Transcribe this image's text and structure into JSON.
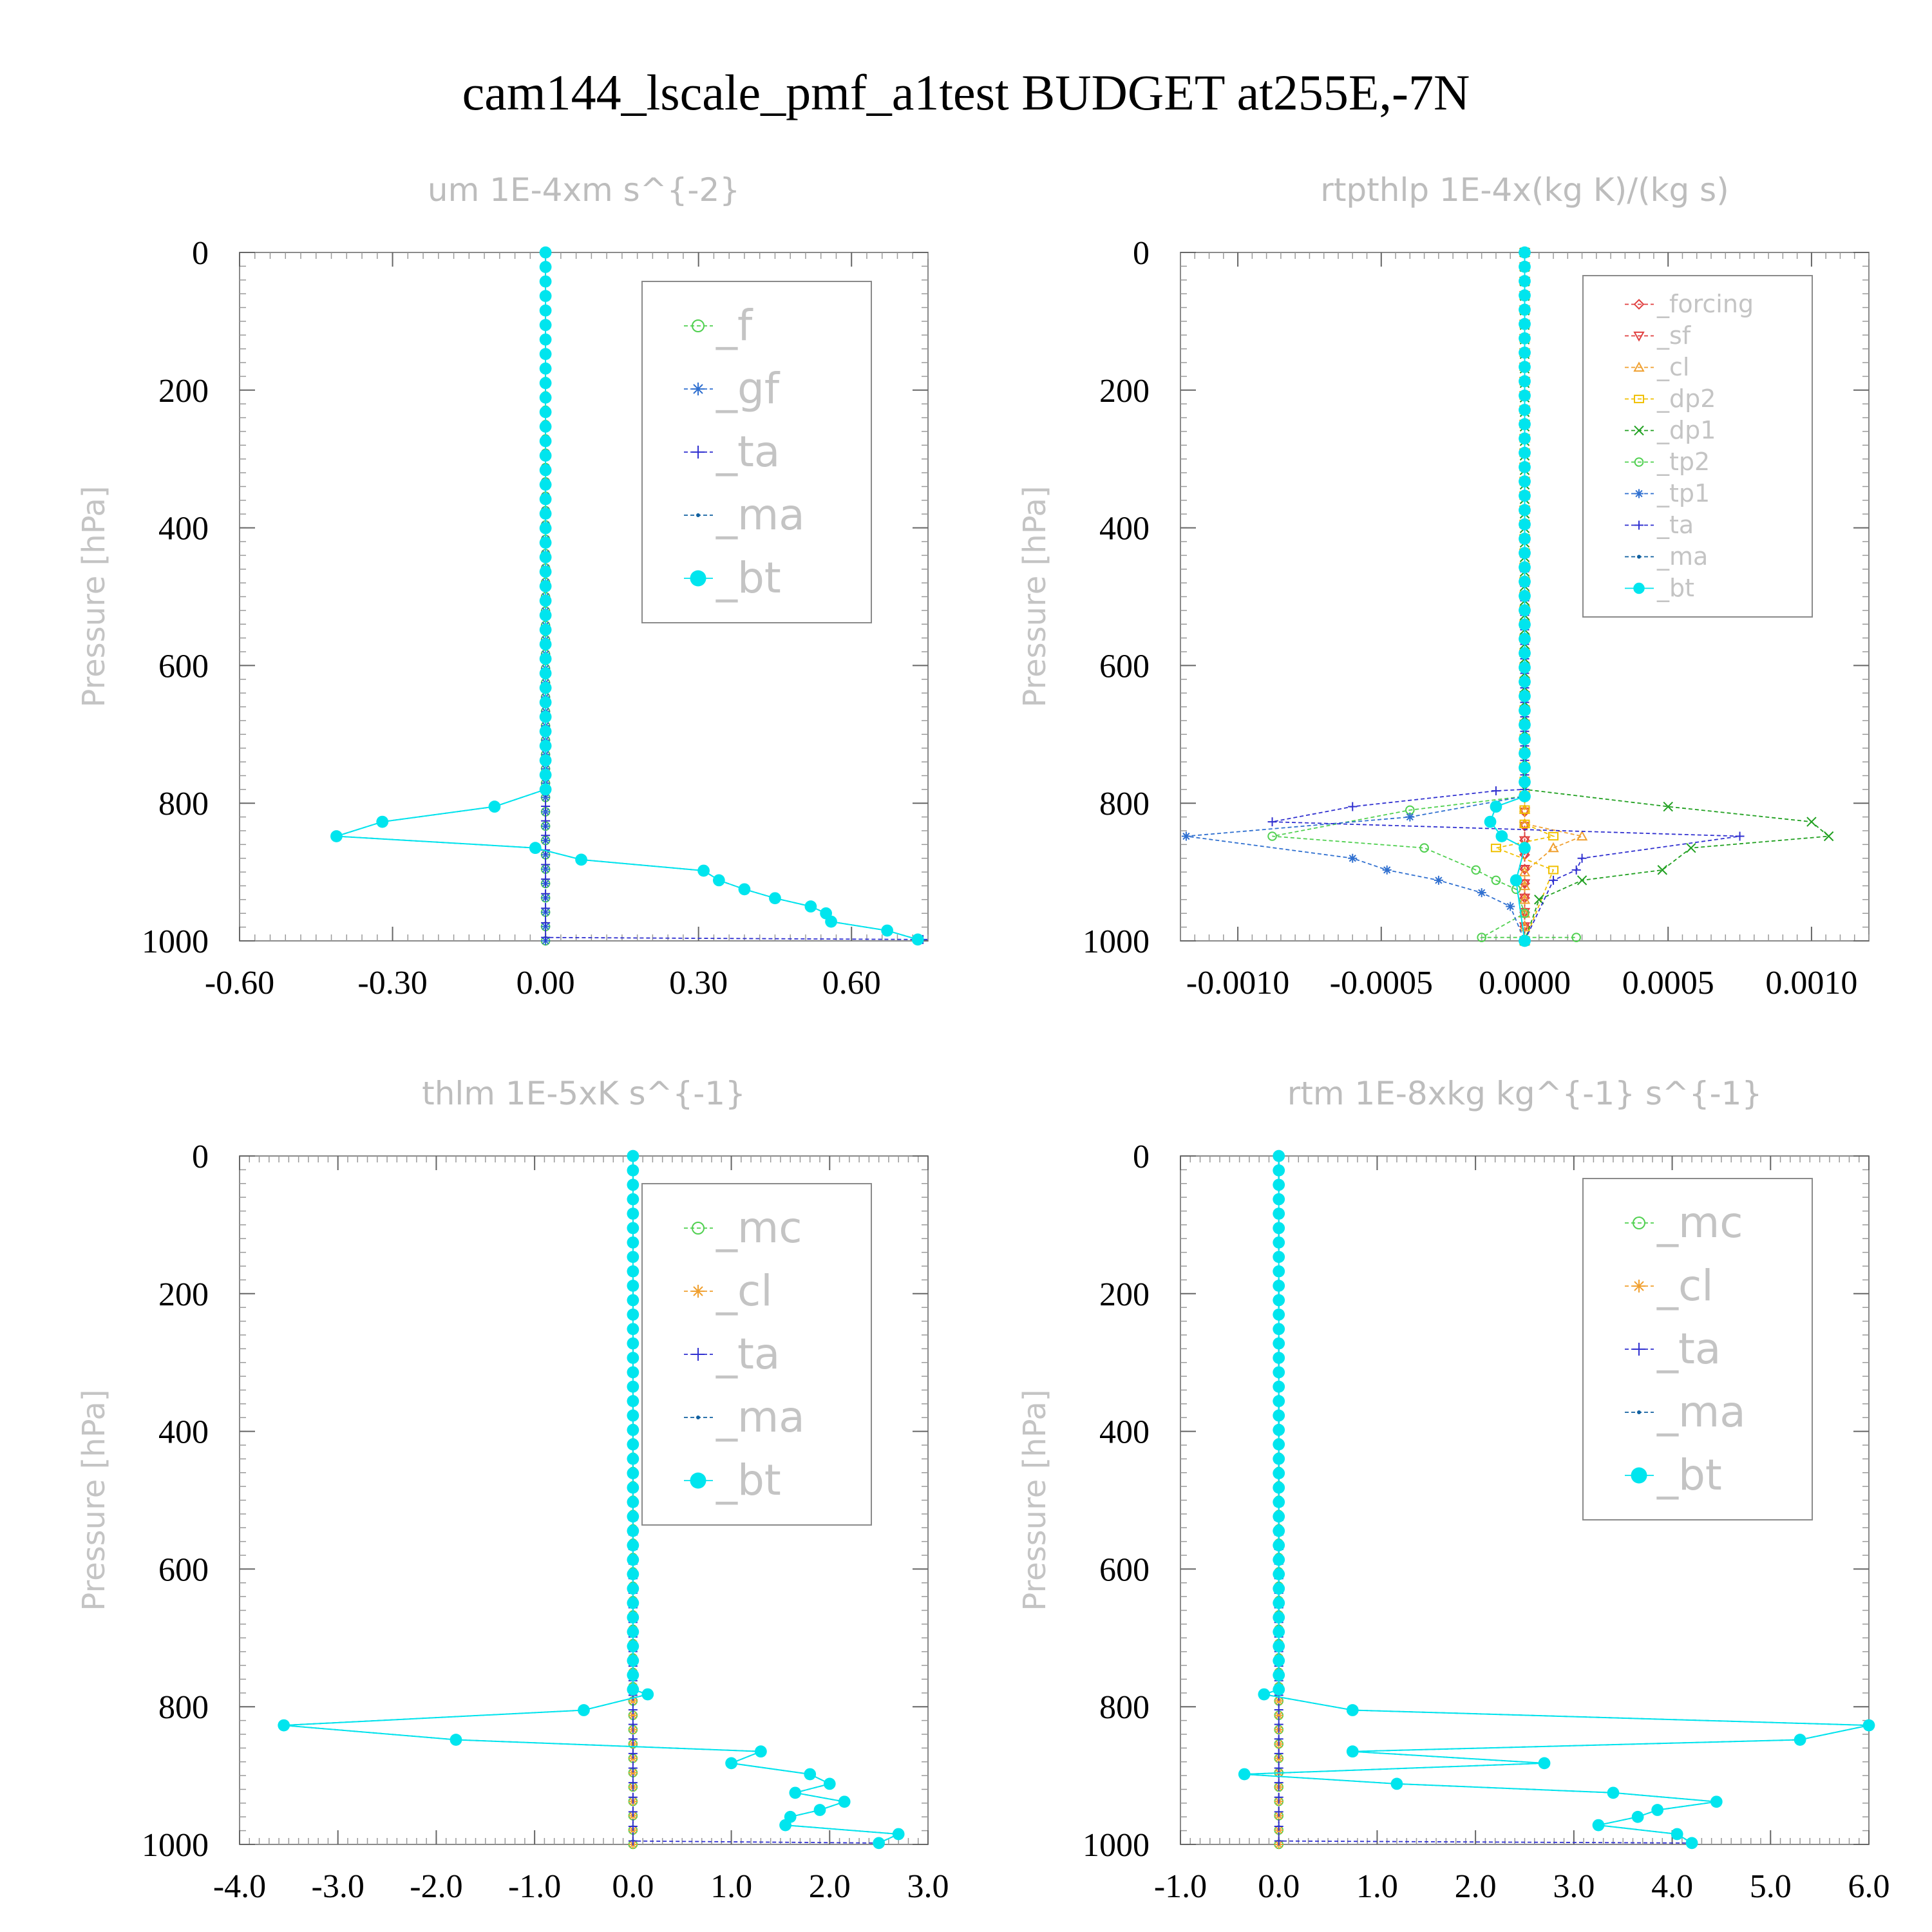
{
  "figure_title": "cam144_lscale_pmf_a1test  BUDGET at255E,-7N",
  "colors": {
    "_f": "#50d050",
    "_gf": "#3070d0",
    "_ta": "#3030d0",
    "_ma": "#1060a0",
    "_bt": "#00e5ee",
    "_forcing": "#e04040",
    "_sf": "#e04040",
    "_cl": "#f0a030",
    "_dp2": "#f0c000",
    "_dp1": "#20a020",
    "_tp2": "#50d050",
    "_tp1": "#3070d0",
    "_mc": "#50d050"
  },
  "chart_data": [
    {
      "type": "line",
      "title": "um  1E-4xm s^{-2}",
      "ylabel": "Pressure [hPa]",
      "xlim": [
        -0.6,
        0.75
      ],
      "ylim": [
        1000,
        0
      ],
      "y_reversed": true,
      "xticks": [
        "-0.60",
        "-0.30",
        "0.00",
        "0.30",
        "0.60"
      ],
      "xtick_values": [
        -0.6,
        -0.3,
        0.0,
        0.3,
        0.6
      ],
      "yticks": [
        "0",
        "200",
        "400",
        "600",
        "800",
        "1000"
      ],
      "ytick_values": [
        0,
        200,
        400,
        600,
        800,
        1000
      ],
      "legend": [
        "_f",
        "_gf",
        "_ta",
        "_ma",
        "_bt"
      ],
      "legend_font": 66,
      "series": [
        {
          "name": "_f",
          "x": [
            0.0,
            0.0
          ],
          "y": [
            0,
            1000
          ]
        },
        {
          "name": "_gf",
          "x": [
            0.0,
            0.0
          ],
          "y": [
            0,
            1000
          ]
        },
        {
          "name": "_ta",
          "x": [
            0.0,
            0.0,
            0.74
          ],
          "y": [
            0,
            995,
            998
          ]
        },
        {
          "name": "_ma",
          "x": [
            0.0,
            0.0,
            -0.1,
            -0.32,
            -0.41,
            -0.02,
            0.07,
            0.31,
            0.34,
            0.39,
            0.45,
            0.52,
            0.55,
            0.56,
            0.67,
            0.73
          ],
          "y": [
            0,
            780,
            805,
            827,
            848,
            865,
            882,
            898,
            912,
            925,
            938,
            950,
            960,
            972,
            985,
            998
          ]
        },
        {
          "name": "_bt",
          "x": [
            0.0,
            0.0,
            -0.1,
            -0.32,
            -0.41,
            -0.02,
            0.07,
            0.31,
            0.34,
            0.39,
            0.45,
            0.52,
            0.55,
            0.56,
            0.67,
            0.73
          ],
          "y": [
            0,
            780,
            805,
            827,
            848,
            865,
            882,
            898,
            912,
            925,
            938,
            950,
            960,
            972,
            985,
            998
          ]
        }
      ]
    },
    {
      "type": "line",
      "title": "rtpthlp  1E-4x(kg K)/(kg s)",
      "ylabel": "Pressure [hPa]",
      "xlim": [
        -0.0012,
        0.0012
      ],
      "ylim": [
        1000,
        0
      ],
      "y_reversed": true,
      "xticks": [
        "-0.0010",
        "-0.0005",
        "0.0000",
        "0.0005",
        "0.0010"
      ],
      "xtick_values": [
        -0.001,
        -0.0005,
        0.0,
        0.0005,
        0.001
      ],
      "yticks": [
        "0",
        "200",
        "400",
        "600",
        "800",
        "1000"
      ],
      "ytick_values": [
        0,
        200,
        400,
        600,
        800,
        1000
      ],
      "legend": [
        "_forcing",
        "_sf",
        "_cl",
        "_dp2",
        "_dp1",
        "_tp2",
        "_tp1",
        "_ta",
        "_ma",
        "_bt"
      ],
      "legend_font": 38,
      "series": [
        {
          "name": "_forcing",
          "x": [
            0.0,
            0.0
          ],
          "y": [
            0,
            1000
          ]
        },
        {
          "name": "_sf",
          "x": [
            0.0,
            0.0
          ],
          "y": [
            0,
            1000
          ]
        },
        {
          "name": "_cl",
          "x": [
            0.0,
            0.0,
            0.0002,
            0.0001,
            0.0,
            0.0
          ],
          "y": [
            0,
            830,
            848,
            865,
            900,
            1000
          ]
        },
        {
          "name": "_dp2",
          "x": [
            0.0,
            0.0,
            0.0001,
            -0.0001,
            0.0001,
            0.0
          ],
          "y": [
            0,
            830,
            848,
            865,
            897,
            1000
          ]
        },
        {
          "name": "_dp1",
          "x": [
            0.0,
            0.0,
            0.0005,
            0.001,
            0.00106,
            0.00058,
            0.00048,
            0.0002,
            5e-05,
            0.0
          ],
          "y": [
            0,
            780,
            805,
            827,
            848,
            865,
            897,
            912,
            940,
            1000
          ]
        },
        {
          "name": "_tp2",
          "x": [
            0.0,
            0.0,
            -0.0004,
            -0.00088,
            -0.00035,
            -0.00017,
            -0.0001,
            -3e-05,
            0.0,
            -0.00015,
            0.00018
          ],
          "y": [
            0,
            790,
            810,
            848,
            865,
            897,
            912,
            925,
            960,
            995,
            995
          ]
        },
        {
          "name": "_tp1",
          "x": [
            0.0,
            0.0,
            -0.0004,
            -0.00118,
            -0.0006,
            -0.00048,
            -0.0003,
            -0.00015,
            -5e-05,
            0.0
          ],
          "y": [
            0,
            790,
            820,
            848,
            880,
            897,
            912,
            930,
            950,
            1000
          ]
        },
        {
          "name": "_ta",
          "x": [
            0.0,
            0.0,
            -0.0001,
            -0.0006,
            -0.00088,
            0.00075,
            0.0002,
            0.00018,
            0.0001,
            0.0
          ],
          "y": [
            0,
            780,
            782,
            805,
            827,
            848,
            880,
            897,
            912,
            1000
          ]
        },
        {
          "name": "_ma",
          "x": [
            0.0,
            0.0,
            -0.0001,
            -0.00012,
            -8e-05,
            0.0,
            -3e-05,
            0.0
          ],
          "y": [
            0,
            790,
            805,
            827,
            848,
            865,
            912,
            1000
          ]
        },
        {
          "name": "_bt",
          "x": [
            0.0,
            0.0,
            -0.0001,
            -0.00012,
            -8e-05,
            0.0,
            -3e-05,
            0.0
          ],
          "y": [
            0,
            790,
            805,
            827,
            848,
            865,
            912,
            1000
          ]
        }
      ]
    },
    {
      "type": "line",
      "title": "thlm  1E-5xK s^{-1}",
      "ylabel": "Pressure [hPa]",
      "xlim": [
        -4.0,
        3.0
      ],
      "ylim": [
        1000,
        0
      ],
      "y_reversed": true,
      "xticks": [
        "-4.0",
        "-3.0",
        "-2.0",
        "-1.0",
        "0.0",
        "1.0",
        "2.0",
        "3.0"
      ],
      "xtick_values": [
        -4,
        -3,
        -2,
        -1,
        0,
        1,
        2,
        3
      ],
      "yticks": [
        "0",
        "200",
        "400",
        "600",
        "800",
        "1000"
      ],
      "ytick_values": [
        0,
        200,
        400,
        600,
        800,
        1000
      ],
      "legend": [
        "_mc",
        "_cl",
        "_ta",
        "_ma",
        "_bt"
      ],
      "legend_font": 66,
      "series": [
        {
          "name": "_mc",
          "x": [
            0.0,
            0.0
          ],
          "y": [
            0,
            1000
          ]
        },
        {
          "name": "_cl",
          "x": [
            0.0,
            0.0
          ],
          "y": [
            0,
            1000
          ]
        },
        {
          "name": "_ta",
          "x": [
            0.0,
            0.0,
            2.5
          ],
          "y": [
            0,
            995,
            998
          ]
        },
        {
          "name": "_ma",
          "x": [
            0.0,
            0.0,
            0.15,
            -0.5,
            -3.55,
            -1.8,
            1.3,
            1.0,
            1.8,
            2.0,
            1.65,
            2.15,
            1.9,
            1.6,
            1.55,
            2.7,
            2.5
          ],
          "y": [
            0,
            775,
            782,
            805,
            827,
            848,
            865,
            882,
            898,
            912,
            925,
            938,
            950,
            960,
            972,
            985,
            998
          ]
        },
        {
          "name": "_bt",
          "x": [
            0.0,
            0.0,
            0.15,
            -0.5,
            -3.55,
            -1.8,
            1.3,
            1.0,
            1.8,
            2.0,
            1.65,
            2.15,
            1.9,
            1.6,
            1.55,
            2.7,
            2.5
          ],
          "y": [
            0,
            775,
            782,
            805,
            827,
            848,
            865,
            882,
            898,
            912,
            925,
            938,
            950,
            960,
            972,
            985,
            998
          ]
        }
      ]
    },
    {
      "type": "line",
      "title": "rtm  1E-8xkg kg^{-1} s^{-1}",
      "ylabel": "Pressure [hPa]",
      "xlim": [
        -1.0,
        6.0
      ],
      "ylim": [
        1000,
        0
      ],
      "y_reversed": true,
      "xticks": [
        "-1.0",
        "0.0",
        "1.0",
        "2.0",
        "3.0",
        "4.0",
        "5.0",
        "6.0"
      ],
      "xtick_values": [
        -1,
        0,
        1,
        2,
        3,
        4,
        5,
        6
      ],
      "yticks": [
        "0",
        "200",
        "400",
        "600",
        "800",
        "1000"
      ],
      "ytick_values": [
        0,
        200,
        400,
        600,
        800,
        1000
      ],
      "legend": [
        "_mc",
        "_cl",
        "_ta",
        "_ma",
        "_bt"
      ],
      "legend_font": 66,
      "series": [
        {
          "name": "_mc",
          "x": [
            0.0,
            0.0
          ],
          "y": [
            0,
            1000
          ]
        },
        {
          "name": "_cl",
          "x": [
            0.0,
            0.0
          ],
          "y": [
            0,
            1000
          ]
        },
        {
          "name": "_ta",
          "x": [
            0.0,
            0.0,
            4.2
          ],
          "y": [
            0,
            995,
            998
          ]
        },
        {
          "name": "_ma",
          "x": [
            0.0,
            0.0,
            -0.15,
            0.75,
            6.0,
            5.3,
            0.75,
            2.7,
            -0.35,
            1.2,
            3.4,
            4.45,
            3.85,
            3.65,
            3.25,
            4.05,
            4.2
          ],
          "y": [
            0,
            775,
            782,
            805,
            827,
            848,
            865,
            882,
            898,
            912,
            925,
            938,
            950,
            960,
            972,
            985,
            998
          ]
        },
        {
          "name": "_bt",
          "x": [
            0.0,
            0.0,
            -0.15,
            0.75,
            6.0,
            5.3,
            0.75,
            2.7,
            -0.35,
            1.2,
            3.4,
            4.45,
            3.85,
            3.65,
            3.25,
            4.05,
            4.2
          ],
          "y": [
            0,
            775,
            782,
            805,
            827,
            848,
            865,
            882,
            898,
            912,
            925,
            938,
            950,
            960,
            972,
            985,
            998
          ]
        }
      ]
    }
  ]
}
